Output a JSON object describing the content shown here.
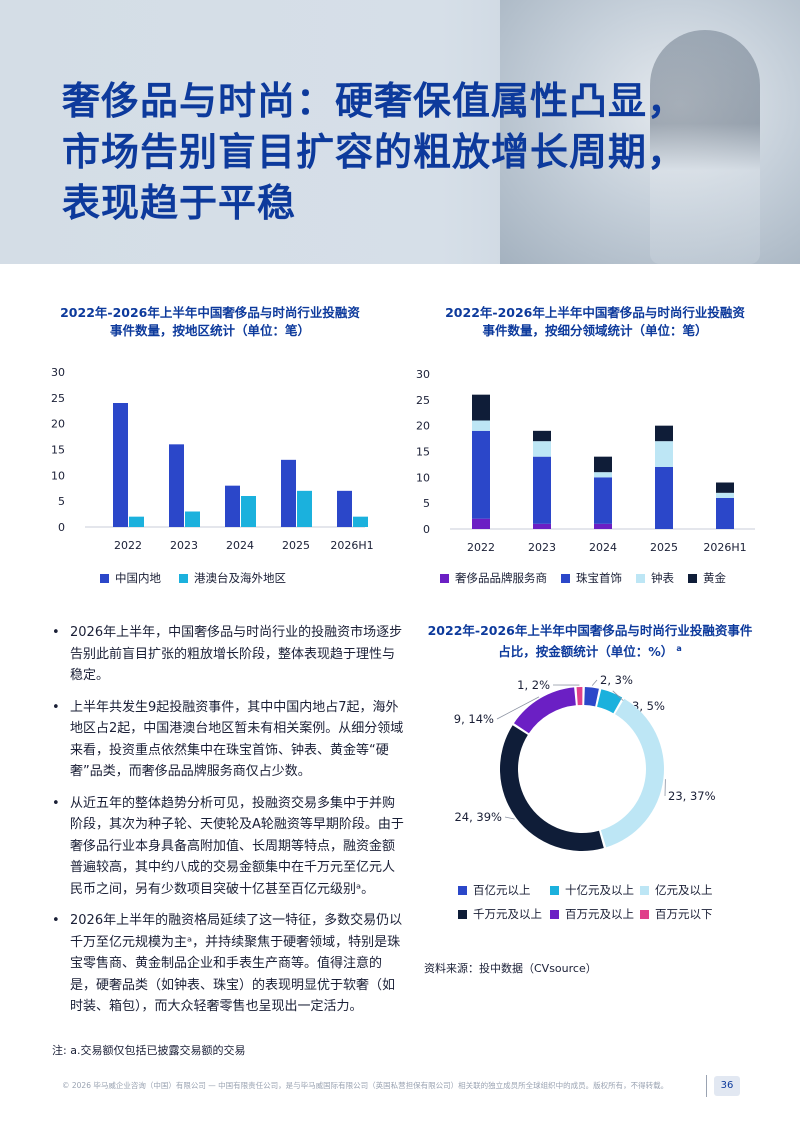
{
  "header": {
    "title_line1": "奢侈品与时尚：硬奢保值属性凸显，",
    "title_line2": "市场告别盲目扩容的粗放增长周期，",
    "title_line3": "表现趋于平稳"
  },
  "colors": {
    "title_blue": "#0d3a9c",
    "mainland": "#2b47c9",
    "overseas": "#1bb1dd",
    "luxury_service": "#6b1fc4",
    "jewelry": "#2b47c9",
    "watch": "#bde6f5",
    "gold": "#0f1d38",
    "hundred_million": "#2b47c9",
    "ten_million_plus": "#1bb1dd",
    "yi_plus": "#bde6f5",
    "qianwan": "#0f1d38",
    "baiwan_plus": "#6b1fc4",
    "baiwan_minus": "#e0408a"
  },
  "chart_data": [
    {
      "type": "bar",
      "title_line1": "2022年-2026年上半年中国奢侈品与时尚行业投融资",
      "title_line2": "事件数量，按地区统计（单位：笔）",
      "categories": [
        "2022",
        "2023",
        "2024",
        "2025",
        "2026H1"
      ],
      "series": [
        {
          "name": "中国内地",
          "values": [
            24,
            16,
            8,
            13,
            7
          ]
        },
        {
          "name": "港澳台及海外地区",
          "values": [
            2,
            3,
            6,
            7,
            2
          ]
        }
      ],
      "ylim": [
        0,
        30
      ],
      "yticks": [
        "0",
        "5",
        "10",
        "15",
        "20",
        "25",
        "30"
      ],
      "legend": "bottom"
    },
    {
      "type": "bar",
      "stacked": true,
      "title_line1": "2022年-2026年上半年中国奢侈品与时尚行业投融资",
      "title_line2": "事件数量，按细分领域统计（单位：笔）",
      "categories": [
        "2022",
        "2023",
        "2024",
        "2025",
        "2026H1"
      ],
      "series": [
        {
          "name": "奢侈品品牌服务商",
          "values": [
            2,
            1,
            1,
            0,
            0
          ]
        },
        {
          "name": "珠宝首饰",
          "values": [
            17,
            13,
            9,
            12,
            6
          ]
        },
        {
          "name": "钟表",
          "values": [
            2,
            3,
            1,
            5,
            1
          ]
        },
        {
          "name": "黄金",
          "values": [
            5,
            2,
            3,
            3,
            2
          ]
        }
      ],
      "ylim": [
        0,
        30
      ],
      "yticks": [
        "0",
        "5",
        "10",
        "15",
        "20",
        "25",
        "30"
      ],
      "legend": "bottom"
    },
    {
      "type": "pie",
      "donut": true,
      "title_line1": "2022年-2026年上半年中国奢侈品与时尚行业投融资事件",
      "title_line2": "占比，按金额统计（单位：%）",
      "title_sup": "a",
      "slices": [
        {
          "name": "百亿元以上",
          "count": 2,
          "percent": 3,
          "label": "2, 3%"
        },
        {
          "name": "十亿元及以上",
          "count": 3,
          "percent": 5,
          "label": "3, 5%"
        },
        {
          "name": "亿元及以上",
          "count": 23,
          "percent": 37,
          "label": "23, 37%"
        },
        {
          "name": "千万元及以上",
          "count": 24,
          "percent": 39,
          "label": "24, 39%"
        },
        {
          "name": "百万元及以上",
          "count": 9,
          "percent": 14,
          "label": "9, 14%"
        },
        {
          "name": "百万元以下",
          "count": 1,
          "percent": 2,
          "label": "1, 2%"
        }
      ],
      "legend": "bottom"
    }
  ],
  "bullets": [
    "2026年上半年，中国奢侈品与时尚行业的投融资市场逐步告别此前盲目扩张的粗放增长阶段，整体表现趋于理性与稳定。",
    "上半年共发生9起投融资事件，其中中国内地占7起，海外地区占2起，中国港澳台地区暂未有相关案例。从细分领域来看，投资重点依然集中在珠宝首饰、钟表、黄金等“硬奢”品类，而奢侈品品牌服务商仅占少数。",
    "从近五年的整体趋势分析可见，投融资交易多集中于并购阶段，其次为种子轮、天使轮及A轮融资等早期阶段。由于奢侈品行业本身具备高附加值、长周期等特点，融资金额普遍较高，其中约八成的交易金额集中在千万元至亿元人民币之间，另有少数项目突破十亿甚至百亿元级别ᵃ。",
    "2026年上半年的融资格局延续了这一特征，多数交易仍以千万至亿元规模为主ᵃ，并持续聚焦于硬奢领域，特别是珠宝零售商、黄金制品企业和手表生产商等。值得注意的是，硬奢品类（如钟表、珠宝）的表现明显优于软奢（如时装、箱包），而大众轻奢零售也呈现出一定活力。"
  ],
  "bullet_symbol": "•",
  "note": "注: a.交易额仅包括已披露交易额的交易",
  "source": "资料来源：投中数据（CVsource）",
  "footer": "© 2026 毕马威企业咨询（中国）有限公司 — 中国有限责任公司，是与毕马威国际有限公司（英国私营担保有限公司）相关联的独立成员所全球组织中的成员。版权所有，不得转载。",
  "page_number": "36"
}
